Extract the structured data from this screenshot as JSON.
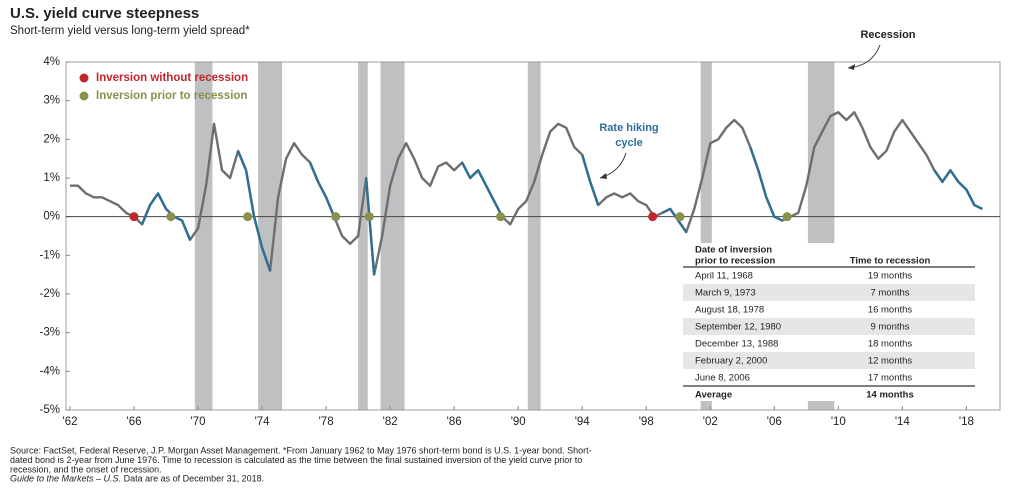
{
  "chart_data": {
    "type": "line",
    "title": "U.S. yield curve steepness",
    "subtitle": "Short-term yield versus long-term yield spread*",
    "xlim": [
      1961.75,
      2020.1
    ],
    "ylim": [
      -5,
      4
    ],
    "xticks": [
      {
        "value": 1962,
        "label": "'62"
      },
      {
        "value": 1966,
        "label": "'66"
      },
      {
        "value": 1970,
        "label": "'70"
      },
      {
        "value": 1974,
        "label": "'74"
      },
      {
        "value": 1978,
        "label": "'78"
      },
      {
        "value": 1982,
        "label": "'82"
      },
      {
        "value": 1986,
        "label": "'86"
      },
      {
        "value": 1990,
        "label": "'90"
      },
      {
        "value": 1994,
        "label": "'94"
      },
      {
        "value": 1998,
        "label": "'98"
      },
      {
        "value": 2002,
        "label": "'02"
      },
      {
        "value": 2006,
        "label": "'06"
      },
      {
        "value": 2010,
        "label": "'10"
      },
      {
        "value": 2014,
        "label": "'14"
      },
      {
        "value": 2018,
        "label": "'18"
      }
    ],
    "yticks": [
      {
        "value": 4,
        "label": "4%"
      },
      {
        "value": 3,
        "label": "3%"
      },
      {
        "value": 2,
        "label": "2%"
      },
      {
        "value": 1,
        "label": "1%"
      },
      {
        "value": 0,
        "label": "0%"
      },
      {
        "value": -1,
        "label": "-1%"
      },
      {
        "value": -2,
        "label": "-2%"
      },
      {
        "value": -3,
        "label": "-3%"
      },
      {
        "value": -4,
        "label": "-4%"
      },
      {
        "value": -5,
        "label": "-5%"
      }
    ],
    "x": [
      1962,
      1962.5,
      1963,
      1963.5,
      1964,
      1964.5,
      1965,
      1965.5,
      1966,
      1966.5,
      1967,
      1967.5,
      1968,
      1968.5,
      1969,
      1969.5,
      1970,
      1970.5,
      1971,
      1971.5,
      1972,
      1972.5,
      1973,
      1973.5,
      1974,
      1974.5,
      1975,
      1975.5,
      1976,
      1976.5,
      1977,
      1977.5,
      1978,
      1978.5,
      1979,
      1979.5,
      1980,
      1980.5,
      1981,
      1981.5,
      1982,
      1982.5,
      1983,
      1983.5,
      1984,
      1984.5,
      1985,
      1985.5,
      1986,
      1986.5,
      1987,
      1987.5,
      1988,
      1988.5,
      1989,
      1989.5,
      1990,
      1990.5,
      1991,
      1991.5,
      1992,
      1992.5,
      1993,
      1993.5,
      1994,
      1994.5,
      1995,
      1995.5,
      1996,
      1996.5,
      1997,
      1997.5,
      1998,
      1998.5,
      1999,
      1999.5,
      2000,
      2000.5,
      2001,
      2001.5,
      2002,
      2002.5,
      2003,
      2003.5,
      2004,
      2004.5,
      2005,
      2005.5,
      2006,
      2006.5,
      2007,
      2007.5,
      2008,
      2008.5,
      2009,
      2009.5,
      2010,
      2010.5,
      2011,
      2011.5,
      2012,
      2012.5,
      2013,
      2013.5,
      2014,
      2014.5,
      2015,
      2015.5,
      2016,
      2016.5,
      2017,
      2017.5,
      2018,
      2018.5,
      2019
    ],
    "series": [
      {
        "color": "#6d6e71",
        "values": [
          0.8,
          0.8,
          0.6,
          0.5,
          0.5,
          0.4,
          0.3,
          0.1,
          0.0,
          -0.2,
          0.3,
          0.6,
          0.2,
          0.0,
          -0.1,
          -0.6,
          -0.3,
          0.8,
          2.4,
          1.2,
          1.0,
          1.7,
          1.2,
          0.0,
          -0.8,
          -1.4,
          0.5,
          1.5,
          1.9,
          1.6,
          1.4,
          0.9,
          0.5,
          0.0,
          -0.5,
          -0.7,
          -0.5,
          1.0,
          -1.5,
          -0.5,
          0.8,
          1.5,
          1.9,
          1.5,
          1.0,
          0.8,
          1.3,
          1.4,
          1.2,
          1.4,
          1.0,
          1.2,
          0.8,
          0.4,
          0.0,
          -0.2,
          0.2,
          0.4,
          0.9,
          1.6,
          2.2,
          2.4,
          2.3,
          1.8,
          1.6,
          0.9,
          0.3,
          0.5,
          0.6,
          0.5,
          0.6,
          0.4,
          0.3,
          0.0,
          0.1,
          0.2,
          -0.1,
          -0.4,
          0.2,
          1.0,
          1.9,
          2.0,
          2.3,
          2.5,
          2.3,
          1.8,
          1.2,
          0.5,
          0.0,
          -0.1,
          0.0,
          0.1,
          0.8,
          1.8,
          2.2,
          2.6,
          2.7,
          2.5,
          2.7,
          2.3,
          1.8,
          1.5,
          1.7,
          2.2,
          2.5,
          2.2,
          1.9,
          1.6,
          1.2,
          0.9,
          1.2,
          0.9,
          0.7,
          0.3,
          0.2
        ]
      },
      {
        "color": "#2e6f96",
        "values": [
          null,
          null,
          null,
          null,
          null,
          null,
          null,
          null,
          null,
          -0.2,
          0.3,
          0.6,
          0.2,
          0.0,
          -0.1,
          -0.6,
          null,
          null,
          null,
          null,
          null,
          1.7,
          1.2,
          0.0,
          -0.8,
          -1.4,
          null,
          null,
          null,
          null,
          1.4,
          0.9,
          0.5,
          0.0,
          null,
          null,
          null,
          1.0,
          -1.5,
          null,
          null,
          null,
          null,
          null,
          null,
          null,
          null,
          null,
          null,
          1.4,
          1.0,
          1.2,
          0.8,
          0.4,
          0.0,
          null,
          null,
          null,
          null,
          null,
          null,
          null,
          null,
          null,
          1.6,
          0.9,
          0.3,
          null,
          null,
          null,
          null,
          null,
          null,
          null,
          0.1,
          0.2,
          -0.1,
          -0.4,
          null,
          null,
          null,
          null,
          null,
          null,
          null,
          1.8,
          1.2,
          0.5,
          0.0,
          -0.1,
          null,
          null,
          null,
          null,
          null,
          null,
          null,
          null,
          null,
          null,
          null,
          null,
          null,
          null,
          null,
          null,
          null,
          null,
          1.2,
          0.9,
          1.2,
          0.9,
          0.7,
          0.3,
          0.2
        ]
      }
    ],
    "markers": [
      {
        "name": "Inversion without recession",
        "color": "#c0272d",
        "x": [
          1966,
          1998.4
        ],
        "values": [
          0,
          0
        ]
      },
      {
        "name": "Inversion prior to recession",
        "color": "#8a8f4a",
        "x": [
          1968.3,
          1973.1,
          1978.6,
          1980.7,
          1988.9,
          2000.1,
          2006.8
        ],
        "values": [
          0,
          0,
          0,
          0,
          0,
          0,
          0
        ]
      }
    ],
    "recession_label": "Recession",
    "recessions": [
      [
        1969.8,
        1970.9
      ],
      [
        1973.75,
        1975.25
      ],
      [
        1980.0,
        1980.6
      ],
      [
        1981.4,
        1982.9
      ],
      [
        1990.6,
        1991.4
      ],
      [
        2001.4,
        2002.1
      ],
      [
        2008.1,
        2009.75
      ]
    ],
    "annotation": [
      "Rate hiking",
      "cycle"
    ],
    "table": {
      "header": [
        [
          "Date of inversion",
          "prior to recession"
        ],
        "Time to recession"
      ],
      "rows": [
        [
          "April 11, 1968",
          "19 months"
        ],
        [
          "March 9, 1973",
          "7 months"
        ],
        [
          "August 18, 1978",
          "16 months"
        ],
        [
          "September 12, 1980",
          "9 months"
        ],
        [
          "December 13, 1988",
          "18 months"
        ],
        [
          "February 2, 2000",
          "12 months"
        ],
        [
          "June 8, 2006",
          "17 months"
        ]
      ],
      "average": [
        "Average",
        "14 months"
      ]
    },
    "footnote": [
      "Source: FactSet, Federal Reserve, J.P. Morgan Asset Management. *From January 1962 to May 1976 short-term bond is U.S. 1-year bond. Short-",
      "dated bond is 2-year from June 1976. Time to recession is calculated as the time between the final sustained inversion of the yield curve prior to",
      "recession, and the onset of recession."
    ],
    "footnote_italic": "Guide to the Markets – U.S.",
    "footnote_tail": " Data are as of December 31, 2018."
  }
}
